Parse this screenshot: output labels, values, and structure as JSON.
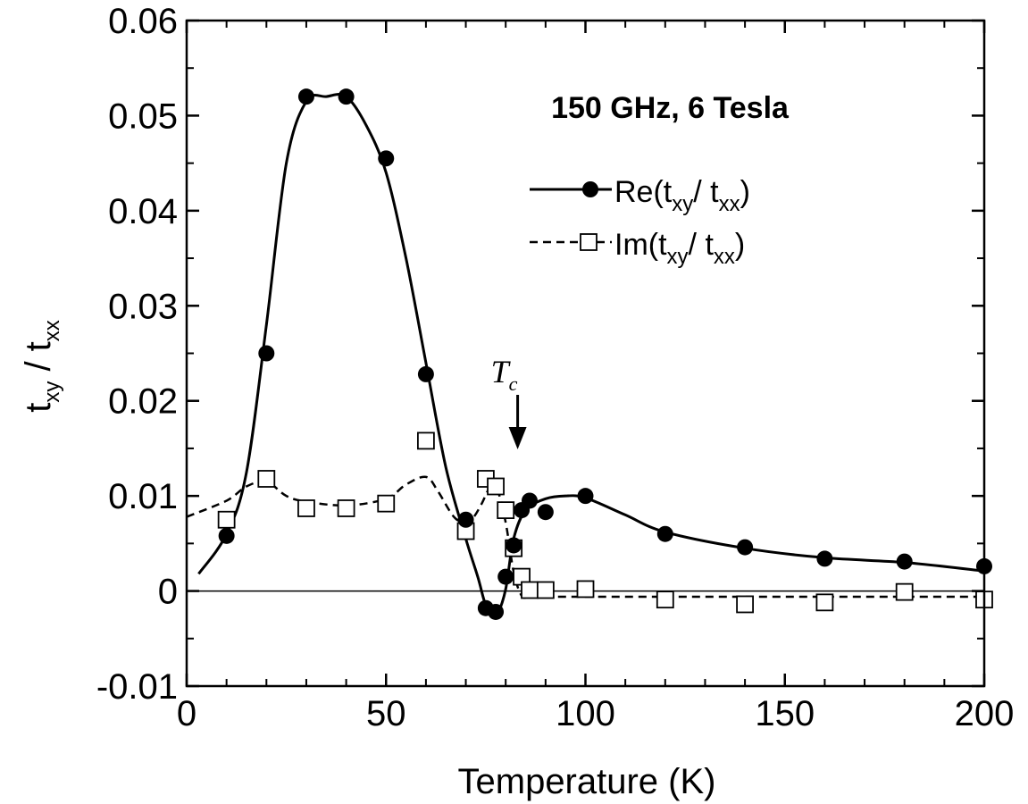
{
  "chart_data": {
    "type": "scatter",
    "title": "150 GHz,  6 Tesla",
    "xlabel": "Temperature (K)",
    "ylabel": "t_{xy} / t_{xx}",
    "xlim": [
      0,
      200
    ],
    "ylim": [
      -0.01,
      0.06
    ],
    "xticks": [
      "0",
      "50",
      "100",
      "150",
      "200"
    ],
    "yticks": [
      "-0.01",
      "0",
      "0.01",
      "0.02",
      "0.03",
      "0.04",
      "0.05",
      "0.06"
    ],
    "legend_position": "upper-right",
    "annotation": {
      "text": "T",
      "subscript": "c",
      "x": 83
    },
    "series": [
      {
        "name": "Re(t_{xy}/ t_{xx})",
        "marker": "filled-circle",
        "line": "solid",
        "color": "#000000",
        "x": [
          10,
          20,
          30,
          40,
          50,
          60,
          70,
          75,
          77.5,
          80,
          82,
          84,
          86,
          90,
          100,
          120,
          140,
          160,
          180,
          200
        ],
        "y": [
          0.0058,
          0.025,
          0.052,
          0.052,
          0.0455,
          0.0228,
          0.0075,
          -0.0018,
          -0.0022,
          0.0015,
          0.0048,
          0.0085,
          0.0095,
          0.0083,
          0.01,
          0.006,
          0.0046,
          0.0034,
          0.0031,
          0.0026
        ]
      },
      {
        "name": "Im(t_{xy}/ t_{xx})",
        "marker": "open-square",
        "line": "dashed",
        "color": "#000000",
        "x": [
          10,
          20,
          30,
          40,
          50,
          60,
          70,
          75,
          77.5,
          80,
          82,
          84,
          86,
          90,
          100,
          120,
          140,
          160,
          180,
          200
        ],
        "y": [
          0.0075,
          0.0118,
          0.0087,
          0.0087,
          0.0092,
          0.0158,
          0.0063,
          0.0118,
          0.011,
          0.0085,
          0.0045,
          0.0015,
          0.0001,
          0.0001,
          0.0002,
          -0.0009,
          -0.0014,
          -0.0012,
          -0.0001,
          -0.0009
        ]
      }
    ],
    "fit_curves": {
      "re": {
        "x": [
          3,
          10,
          15,
          20,
          25,
          30,
          35,
          40,
          45,
          50,
          55,
          60,
          65,
          70,
          73,
          75,
          77,
          78,
          80,
          82,
          85,
          90,
          95,
          100,
          110,
          120,
          140,
          160,
          180,
          200
        ],
        "y": [
          0.0018,
          0.006,
          0.0125,
          0.028,
          0.045,
          0.0515,
          0.052,
          0.052,
          0.049,
          0.044,
          0.035,
          0.024,
          0.013,
          0.0055,
          0.0015,
          -0.0015,
          -0.0024,
          -0.0024,
          0.0002,
          0.0055,
          0.0085,
          0.0097,
          0.01,
          0.0098,
          0.008,
          0.0062,
          0.0045,
          0.0035,
          0.003,
          0.0021
        ]
      },
      "im": {
        "x": [
          0,
          10,
          15,
          20,
          25,
          30,
          40,
          50,
          55,
          60,
          63,
          67,
          70,
          72,
          74,
          76,
          78,
          80,
          82,
          84,
          86,
          90,
          100,
          120,
          140,
          160,
          180,
          200
        ],
        "y": [
          0.0078,
          0.0095,
          0.011,
          0.0115,
          0.01,
          0.0094,
          0.009,
          0.0097,
          0.0112,
          0.012,
          0.0105,
          0.0078,
          0.0072,
          0.0078,
          0.0092,
          0.0108,
          0.0105,
          0.0072,
          0.002,
          -0.0005,
          -0.0006,
          -0.0006,
          -0.0006,
          -0.0006,
          -0.0006,
          -0.0006,
          -0.0006,
          -0.0006
        ]
      }
    }
  }
}
